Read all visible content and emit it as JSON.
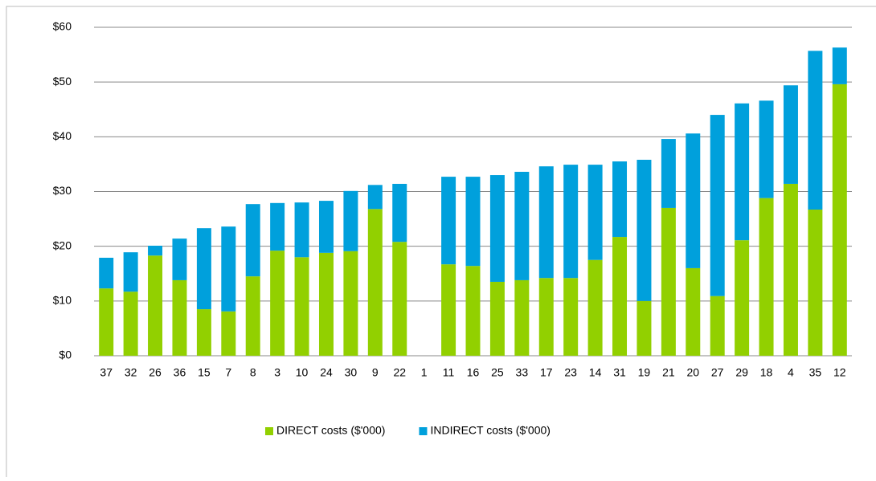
{
  "chart_data": {
    "type": "stacked-bar",
    "categories": [
      "37",
      "32",
      "26",
      "36",
      "15",
      "7",
      "8",
      "3",
      "10",
      "24",
      "30",
      "9",
      "22",
      "1",
      "11",
      "16",
      "25",
      "33",
      "17",
      "23",
      "14",
      "31",
      "19",
      "21",
      "20",
      "27",
      "29",
      "18",
      "4",
      "35",
      "12"
    ],
    "series": [
      {
        "name": "DIRECT costs ($'000)",
        "color": "#92d000",
        "values": [
          12.3,
          11.7,
          18.3,
          13.8,
          8.5,
          8.1,
          14.5,
          19.2,
          18.0,
          18.8,
          19.1,
          26.8,
          20.8,
          0,
          16.7,
          16.4,
          13.5,
          13.8,
          14.2,
          14.2,
          17.5,
          21.7,
          10.0,
          27.0,
          16.0,
          10.9,
          21.1,
          28.8,
          31.4,
          26.7,
          49.6
        ]
      },
      {
        "name": "INDIRECT  costs ($'000)",
        "color": "#00a0dc",
        "values": [
          5.6,
          7.2,
          1.8,
          7.6,
          14.8,
          15.5,
          13.2,
          8.7,
          10.0,
          9.5,
          11.0,
          4.4,
          10.6,
          0,
          16.0,
          16.3,
          19.5,
          19.8,
          20.4,
          20.7,
          17.4,
          13.8,
          25.8,
          12.6,
          24.6,
          33.1,
          25.0,
          17.8,
          18.0,
          29.0,
          6.7
        ]
      }
    ],
    "ylim": [
      0,
      60
    ],
    "yticks": [
      {
        "value": 0,
        "label": "$0"
      },
      {
        "value": 10,
        "label": "$10"
      },
      {
        "value": 20,
        "label": "$20"
      },
      {
        "value": 30,
        "label": "$30"
      },
      {
        "value": 40,
        "label": "$40"
      },
      {
        "value": 50,
        "label": "$50"
      },
      {
        "value": 60,
        "label": "$60"
      }
    ],
    "grid": true,
    "legend": "bottom"
  }
}
